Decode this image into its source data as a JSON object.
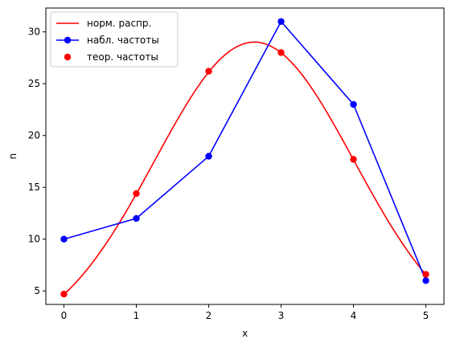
{
  "chart_data": {
    "type": "line",
    "title": "",
    "xlabel": "x",
    "ylabel": "n",
    "xlim": [
      -0.25,
      5.25
    ],
    "ylim": [
      3.7,
      32.3
    ],
    "xticks": [
      0,
      1,
      2,
      3,
      4,
      5
    ],
    "yticks": [
      5,
      10,
      15,
      20,
      25,
      30
    ],
    "grid": false,
    "legend_position": "top-left",
    "series": [
      {
        "name": "норм. распр.",
        "kind": "curve",
        "color": "#ff0000",
        "normal": {
          "n": 100,
          "mean": 2.63,
          "sd": 1.375,
          "h": 1
        },
        "x_range": [
          0,
          5
        ]
      },
      {
        "name": "набл. частоты",
        "kind": "line-markers",
        "color": "#0000ff",
        "x": [
          0,
          1,
          2,
          3,
          4,
          5
        ],
        "values": [
          10,
          12,
          18,
          31,
          23,
          6
        ]
      },
      {
        "name": "теор. частоты",
        "kind": "scatter",
        "color": "#ff0000",
        "x": [
          0,
          1,
          2,
          3,
          4,
          5
        ],
        "values": [
          4.7,
          14.4,
          26.2,
          28.0,
          17.7,
          6.6
        ]
      }
    ]
  }
}
